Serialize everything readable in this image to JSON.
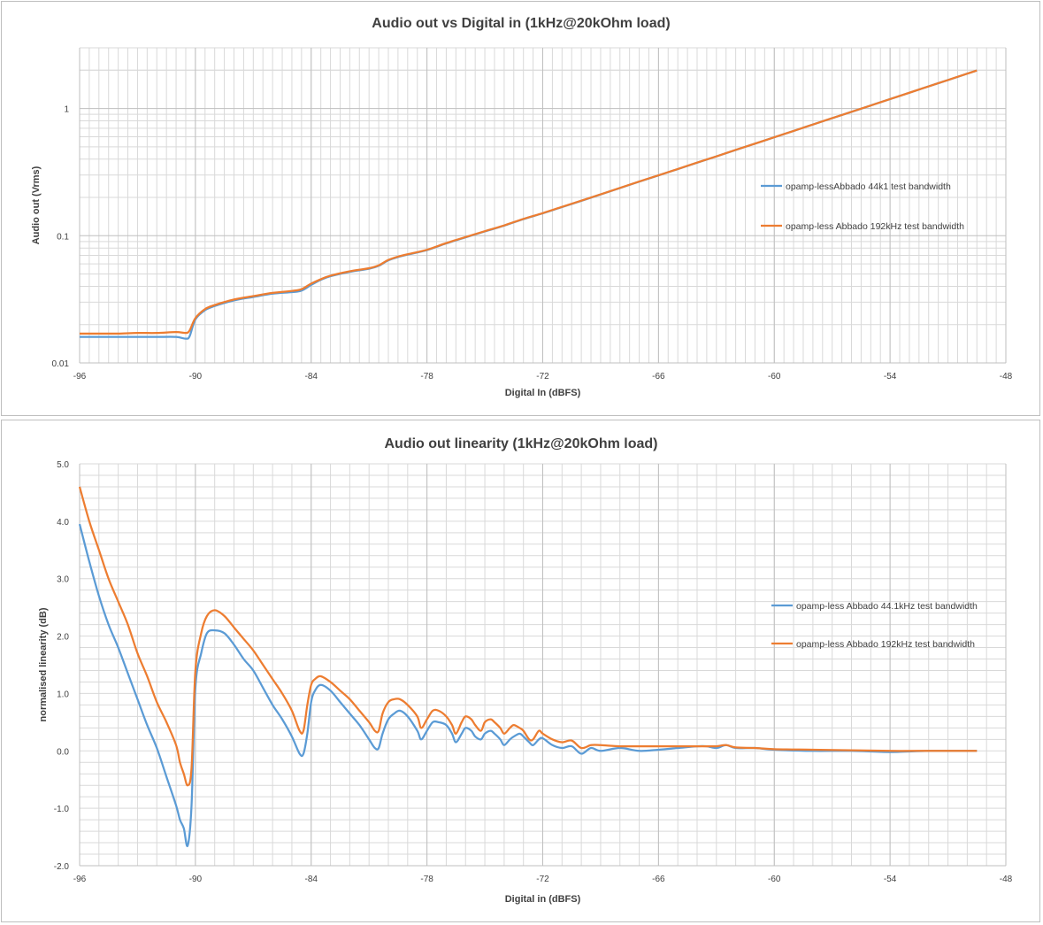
{
  "chart_data": [
    {
      "type": "line",
      "title": "Audio out vs Digital in (1kHz@20kOhm load)",
      "xlabel": "Digital In (dBFS)",
      "ylabel": "Audio out (Vrms)",
      "xlim": [
        -96,
        -48
      ],
      "ylim": [
        0.01,
        3
      ],
      "yscale": "log",
      "xticks": [
        -96,
        -90,
        -84,
        -78,
        -72,
        -66,
        -60,
        -54,
        -48
      ],
      "xtick_labels": [
        "-96",
        "-90",
        "-84",
        "-78",
        "-72",
        "-66",
        "-60",
        "-54",
        "-48"
      ],
      "yticks": [
        0.01,
        0.1,
        1
      ],
      "ytick_labels": [
        "0.01",
        "0.1",
        "1"
      ],
      "grid": true,
      "legend_position": "right",
      "series": [
        {
          "name": "opamp-lessAbbado 44k1 test bandwidth",
          "color": "#5b9bd5",
          "x": [
            -96,
            -95,
            -94,
            -93,
            -92,
            -91,
            -90.5,
            -90.3,
            -90,
            -89.5,
            -89,
            -88,
            -87,
            -86,
            -85,
            -84.5,
            -84,
            -83.5,
            -83,
            -82,
            -81,
            -80.5,
            -80,
            -79.5,
            -79,
            -78,
            -77,
            -76,
            -75,
            -74,
            -73,
            -72,
            -71,
            -70,
            -69,
            -68,
            -67,
            -66,
            -65,
            -64,
            -63,
            -62,
            -61,
            -60,
            -59,
            -58,
            -57,
            -56,
            -55,
            -54,
            -53,
            -52,
            -51,
            -50,
            -49.5
          ],
          "y": [
            0.016,
            0.016,
            0.016,
            0.016,
            0.016,
            0.016,
            0.0155,
            0.0162,
            0.022,
            0.026,
            0.028,
            0.031,
            0.033,
            0.035,
            0.036,
            0.037,
            0.041,
            0.045,
            0.048,
            0.052,
            0.055,
            0.058,
            0.064,
            0.068,
            0.071,
            0.077,
            0.087,
            0.097,
            0.108,
            0.12,
            0.135,
            0.15,
            0.168,
            0.188,
            0.211,
            0.237,
            0.266,
            0.298,
            0.334,
            0.375,
            0.42,
            0.472,
            0.529,
            0.594,
            0.666,
            0.748,
            0.839,
            0.941,
            1.056,
            1.185,
            1.33,
            1.492,
            1.674,
            1.878,
            1.99
          ]
        },
        {
          "name": "opamp-less Abbado 192kHz test bandwidth",
          "color": "#ed7d31",
          "x": [
            -96,
            -95,
            -94,
            -93,
            -92,
            -91,
            -90.5,
            -90.3,
            -90,
            -89.5,
            -89,
            -88,
            -87,
            -86,
            -85,
            -84.5,
            -84,
            -83.5,
            -83,
            -82,
            -81,
            -80.5,
            -80,
            -79.5,
            -79,
            -78,
            -77,
            -76,
            -75,
            -74,
            -73,
            -72,
            -71,
            -70,
            -69,
            -68,
            -67,
            -66,
            -65,
            -64,
            -63,
            -62,
            -61,
            -60,
            -59,
            -58,
            -57,
            -56,
            -55,
            -54,
            -53,
            -52,
            -51,
            -50,
            -49.5
          ],
          "y": [
            0.017,
            0.017,
            0.017,
            0.0172,
            0.0172,
            0.0175,
            0.0172,
            0.018,
            0.0225,
            0.0265,
            0.0285,
            0.0315,
            0.0335,
            0.0355,
            0.0368,
            0.038,
            0.042,
            0.0455,
            0.0485,
            0.0525,
            0.0555,
            0.0585,
            0.0645,
            0.0685,
            0.0715,
            0.0775,
            0.0875,
            0.0975,
            0.1085,
            0.1205,
            0.1355,
            0.1505,
            0.1685,
            0.1885,
            0.2115,
            0.2375,
            0.2665,
            0.2985,
            0.3345,
            0.3755,
            0.4205,
            0.4725,
            0.5295,
            0.5945,
            0.6665,
            0.7485,
            0.8395,
            0.9415,
            1.0565,
            1.1855,
            1.3305,
            1.4925,
            1.6745,
            1.8785,
            1.99
          ]
        }
      ]
    },
    {
      "type": "line",
      "title": "Audio out  linearity (1kHz@20kOhm load)",
      "xlabel": "Digital in (dBFS)",
      "ylabel": "normalised linearity (dB)",
      "xlim": [
        -96,
        -48
      ],
      "ylim": [
        -2.0,
        5.0
      ],
      "xticks": [
        -96,
        -90,
        -84,
        -78,
        -72,
        -66,
        -60,
        -54,
        -48
      ],
      "xtick_labels": [
        "-96",
        "-90",
        "-84",
        "-78",
        "-72",
        "-66",
        "-60",
        "-54",
        "-48"
      ],
      "yticks": [
        -2,
        -1,
        0,
        1,
        2,
        3,
        4,
        5
      ],
      "ytick_labels": [
        "-2.0",
        "-1.0",
        "0.0",
        "1.0",
        "2.0",
        "3.0",
        "4.0",
        "5.0"
      ],
      "grid": true,
      "legend_position": "right",
      "series": [
        {
          "name": "opamp-less Abbado 44.1kHz test bandwidth",
          "color": "#5b9bd5",
          "x": [
            -96,
            -95.5,
            -95,
            -94.5,
            -94,
            -93.5,
            -93,
            -92.5,
            -92,
            -91.5,
            -91,
            -90.8,
            -90.6,
            -90.4,
            -90.2,
            -90,
            -89.7,
            -89.4,
            -89,
            -88.5,
            -88,
            -87.5,
            -87,
            -86.5,
            -86,
            -85.5,
            -85,
            -84.6,
            -84.4,
            -84.2,
            -84,
            -83.8,
            -83.5,
            -83,
            -82.5,
            -82,
            -81.5,
            -81,
            -80.7,
            -80.5,
            -80.3,
            -80,
            -79.7,
            -79.4,
            -79,
            -78.5,
            -78.3,
            -78,
            -77.7,
            -77.4,
            -77,
            -76.7,
            -76.5,
            -76.2,
            -76,
            -75.7,
            -75.5,
            -75.2,
            -75,
            -74.7,
            -74.5,
            -74.2,
            -74,
            -73.7,
            -73.5,
            -73.2,
            -73,
            -72.7,
            -72.5,
            -72.2,
            -72,
            -71.5,
            -71,
            -70.5,
            -70,
            -69.5,
            -69,
            -68,
            -67,
            -66,
            -65,
            -64,
            -63.5,
            -63,
            -62.5,
            -62,
            -61,
            -60,
            -58,
            -56,
            -54,
            -52,
            -50,
            -49.5
          ],
          "y": [
            3.95,
            3.3,
            2.7,
            2.2,
            1.8,
            1.35,
            0.9,
            0.45,
            0.05,
            -0.45,
            -0.95,
            -1.2,
            -1.35,
            -1.65,
            -0.95,
            1.1,
            1.7,
            2.05,
            2.1,
            2.05,
            1.85,
            1.6,
            1.4,
            1.1,
            0.8,
            0.55,
            0.25,
            -0.05,
            -0.05,
            0.3,
            0.85,
            1.05,
            1.15,
            1.05,
            0.85,
            0.65,
            0.45,
            0.2,
            0.05,
            0.05,
            0.3,
            0.55,
            0.65,
            0.7,
            0.6,
            0.35,
            0.2,
            0.35,
            0.5,
            0.5,
            0.45,
            0.3,
            0.15,
            0.3,
            0.4,
            0.35,
            0.25,
            0.2,
            0.3,
            0.35,
            0.3,
            0.2,
            0.1,
            0.2,
            0.25,
            0.3,
            0.25,
            0.15,
            0.1,
            0.2,
            0.22,
            0.1,
            0.05,
            0.08,
            -0.05,
            0.05,
            0.0,
            0.05,
            0.0,
            0.02,
            0.05,
            0.08,
            0.08,
            0.05,
            0.1,
            0.05,
            0.05,
            0.02,
            0.0,
            0.0,
            -0.02,
            0.0,
            0.0,
            0.0
          ]
        },
        {
          "name": "opamp-less Abbado 192kHz test bandwidth",
          "color": "#ed7d31",
          "x": [
            -96,
            -95.5,
            -95,
            -94.5,
            -94,
            -93.5,
            -93,
            -92.5,
            -92,
            -91.5,
            -91,
            -90.8,
            -90.6,
            -90.4,
            -90.2,
            -90,
            -89.7,
            -89.4,
            -89,
            -88.5,
            -88,
            -87.5,
            -87,
            -86.5,
            -86,
            -85.5,
            -85,
            -84.6,
            -84.4,
            -84.2,
            -84,
            -83.8,
            -83.5,
            -83,
            -82.5,
            -82,
            -81.5,
            -81,
            -80.7,
            -80.5,
            -80.3,
            -80,
            -79.7,
            -79.4,
            -79,
            -78.5,
            -78.3,
            -78,
            -77.7,
            -77.4,
            -77,
            -76.7,
            -76.5,
            -76.2,
            -76,
            -75.7,
            -75.5,
            -75.2,
            -75,
            -74.7,
            -74.5,
            -74.2,
            -74,
            -73.7,
            -73.5,
            -73.2,
            -73,
            -72.7,
            -72.5,
            -72.2,
            -72,
            -71.5,
            -71,
            -70.5,
            -70,
            -69.5,
            -69,
            -68,
            -67,
            -66,
            -65,
            -64,
            -63.5,
            -63,
            -62.5,
            -62,
            -61,
            -60,
            -58,
            -56,
            -54,
            -52,
            -50,
            -49.5
          ],
          "y": [
            4.6,
            4.0,
            3.5,
            3.0,
            2.6,
            2.2,
            1.7,
            1.3,
            0.85,
            0.5,
            0.1,
            -0.2,
            -0.4,
            -0.6,
            -0.3,
            1.4,
            2.05,
            2.35,
            2.45,
            2.35,
            2.15,
            1.95,
            1.75,
            1.5,
            1.25,
            1.0,
            0.7,
            0.35,
            0.35,
            0.8,
            1.15,
            1.25,
            1.3,
            1.2,
            1.05,
            0.9,
            0.7,
            0.5,
            0.35,
            0.35,
            0.65,
            0.85,
            0.9,
            0.9,
            0.8,
            0.6,
            0.4,
            0.55,
            0.7,
            0.7,
            0.6,
            0.45,
            0.3,
            0.5,
            0.6,
            0.55,
            0.45,
            0.35,
            0.5,
            0.55,
            0.5,
            0.4,
            0.3,
            0.4,
            0.45,
            0.4,
            0.35,
            0.2,
            0.2,
            0.35,
            0.3,
            0.2,
            0.15,
            0.18,
            0.05,
            0.1,
            0.1,
            0.08,
            0.08,
            0.08,
            0.08,
            0.08,
            0.08,
            0.08,
            0.1,
            0.06,
            0.05,
            0.03,
            0.02,
            0.01,
            0.0,
            0.0,
            0.0,
            0.0
          ]
        }
      ]
    }
  ]
}
